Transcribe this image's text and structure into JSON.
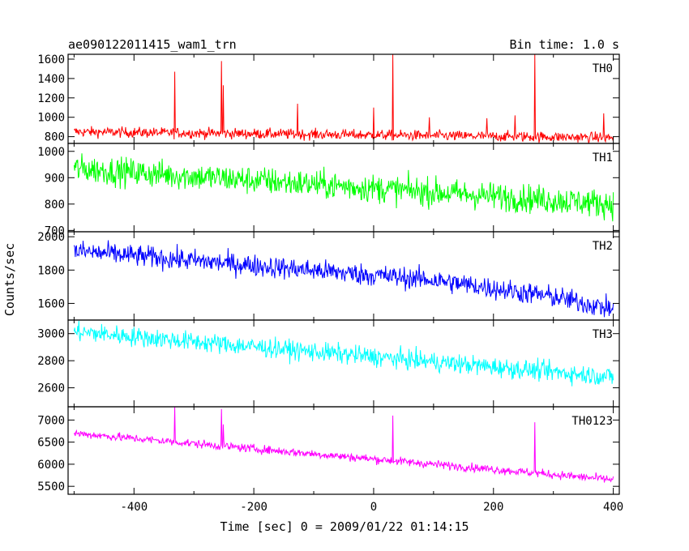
{
  "chart_data": {
    "type": "line",
    "title_left": "ae090122011415_wam1_trn",
    "title_right": "Bin time: 1.0 s",
    "xlabel": "Time [sec] 0 = 2009/01/22 01:14:15",
    "ylabel": "Counts/sec",
    "xlim": [
      -510,
      410
    ],
    "x_ticks": [
      -400,
      -200,
      0,
      200,
      400
    ],
    "panels": [
      {
        "name": "TH0",
        "color": "#ff0000",
        "ylim": [
          730,
          1650
        ],
        "y_ticks": [
          800,
          1000,
          1200,
          1400,
          1600
        ],
        "trend": [
          [
            -500,
            850
          ],
          [
            400,
            790
          ]
        ],
        "noise": 45,
        "spikes": [
          [
            -332,
            1470
          ],
          [
            -254,
            1580
          ],
          [
            -251,
            1330
          ],
          [
            -127,
            1140
          ],
          [
            0,
            1100
          ],
          [
            32,
            1650
          ],
          [
            93,
            1000
          ],
          [
            189,
            990
          ],
          [
            236,
            1020
          ],
          [
            269,
            1650
          ],
          [
            384,
            1040
          ]
        ]
      },
      {
        "name": "TH1",
        "color": "#00ff00",
        "ylim": [
          695,
          1030
        ],
        "y_ticks": [
          700,
          800,
          900,
          1000
        ],
        "trend": [
          [
            -500,
            935
          ],
          [
            400,
            800
          ]
        ],
        "noise": 45,
        "spikes": []
      },
      {
        "name": "TH2",
        "color": "#0000ff",
        "ylim": [
          1500,
          2030
        ],
        "y_ticks": [
          1600,
          1800,
          2000
        ],
        "trend": [
          [
            -500,
            1915
          ],
          [
            100,
            1740
          ],
          [
            300,
            1640
          ],
          [
            400,
            1565
          ]
        ],
        "noise": 55,
        "spikes": []
      },
      {
        "name": "TH3",
        "color": "#00ffff",
        "ylim": [
          2460,
          3100
        ],
        "y_ticks": [
          2600,
          2800,
          3000
        ],
        "trend": [
          [
            -500,
            3015
          ],
          [
            400,
            2680
          ]
        ],
        "noise": 60,
        "spikes": []
      },
      {
        "name": "TH0123",
        "color": "#ff00ff",
        "ylim": [
          5320,
          7300
        ],
        "y_ticks": [
          5500,
          6000,
          6500,
          7000
        ],
        "trend": [
          [
            -500,
            6700
          ],
          [
            400,
            5650
          ]
        ],
        "noise": 80,
        "spikes": [
          [
            -332,
            7300
          ],
          [
            -254,
            7250
          ],
          [
            -251,
            6900
          ],
          [
            32,
            7100
          ],
          [
            269,
            6950
          ]
        ]
      }
    ]
  }
}
